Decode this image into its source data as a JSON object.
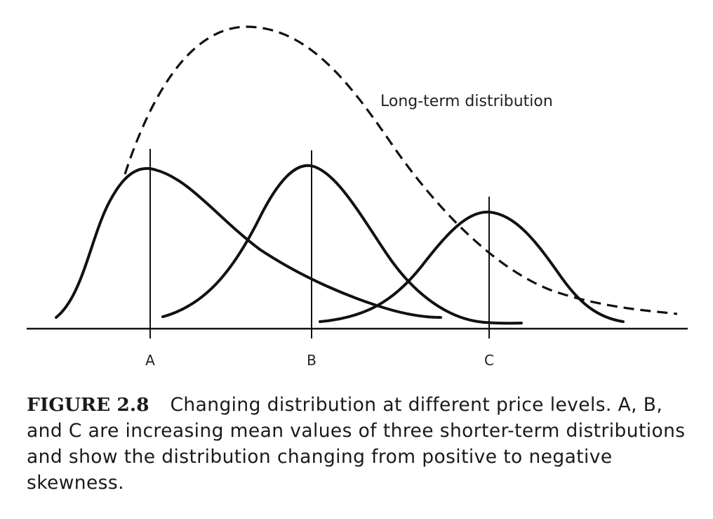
{
  "figure": {
    "long_term_label": "Long-term distribution",
    "markers": [
      {
        "id": "A",
        "label": "A"
      },
      {
        "id": "B",
        "label": "B"
      },
      {
        "id": "C",
        "label": "C"
      }
    ]
  },
  "caption": {
    "number": "FIGURE 2.8",
    "text": "Changing distribution at different price levels. A, B, and C are increasing mean values of three shorter-term distributions and show the distribution changing from positive to negative skewness."
  }
}
